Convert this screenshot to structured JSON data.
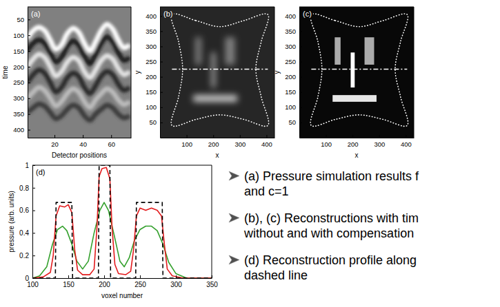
{
  "chart_data": [
    {
      "type": "line",
      "label": "(a)",
      "x_label": "Detector positions",
      "y_label": "time",
      "xlim": [
        1,
        74
      ],
      "ylim": [
        425,
        10
      ],
      "xticks": [
        20,
        40,
        60
      ],
      "yticks": [
        50,
        100,
        150,
        200,
        250,
        300,
        350,
        400
      ],
      "clim": [
        0,
        1
      ],
      "background": 0.5,
      "x": [
        1,
        5,
        9,
        13,
        17,
        21,
        25,
        29,
        33,
        37,
        41,
        45,
        49,
        53,
        57,
        61,
        65,
        69,
        73
      ],
      "series": [
        {
          "color": "#ffffff",
          "values": [
            110,
            85,
            75,
            85,
            115,
            145,
            130,
            95,
            78,
            90,
            125,
            150,
            120,
            85,
            65,
            80,
            115,
            140,
            130
          ]
        },
        {
          "color": "#1a1a1a",
          "values": [
            150,
            125,
            115,
            125,
            155,
            185,
            170,
            135,
            118,
            130,
            165,
            190,
            160,
            125,
            105,
            120,
            155,
            180,
            170
          ]
        },
        {
          "color": "#e6e6e6",
          "values": [
            200,
            175,
            160,
            170,
            200,
            230,
            215,
            185,
            170,
            180,
            215,
            235,
            210,
            180,
            165,
            175,
            205,
            225,
            215
          ]
        },
        {
          "color": "#2b2b2b",
          "values": [
            250,
            225,
            210,
            220,
            250,
            280,
            265,
            235,
            220,
            230,
            265,
            285,
            260,
            230,
            215,
            225,
            255,
            275,
            265
          ]
        },
        {
          "color": "#bdbdbd",
          "values": [
            300,
            280,
            265,
            275,
            300,
            325,
            310,
            285,
            270,
            280,
            310,
            330,
            305,
            285,
            270,
            280,
            305,
            320,
            310
          ]
        },
        {
          "color": "#3a3a3a",
          "values": [
            345,
            330,
            318,
            325,
            345,
            365,
            355,
            335,
            322,
            330,
            355,
            370,
            350,
            335,
            322,
            330,
            350,
            362,
            355
          ]
        }
      ]
    },
    {
      "type": "image",
      "label": "(b)",
      "x_label": "x",
      "y_label": "y",
      "xlim": [
        0,
        430
      ],
      "ylim": [
        0,
        430
      ],
      "xticks": [
        100,
        200,
        300,
        400
      ],
      "yticks": [
        50,
        100,
        150,
        200,
        250,
        300,
        350,
        400
      ],
      "clim": [
        0,
        1
      ],
      "background": 0.15,
      "rects": [
        {
          "x": [
            133,
            155
          ],
          "y": [
            240,
            330
          ],
          "value": 0.5
        },
        {
          "x": [
            193,
            208
          ],
          "y": [
            165,
            280
          ],
          "value": 0.65
        },
        {
          "x": [
            245,
            281
          ],
          "y": [
            240,
            330
          ],
          "value": 0.5
        },
        {
          "x": [
            125,
            290
          ],
          "y": [
            118,
            140
          ],
          "value": 0.8
        }
      ],
      "boundary": {
        "x": [
          45,
          135,
          225,
          315,
          405,
          380,
          360,
          380,
          405,
          315,
          225,
          135,
          45,
          70,
          85,
          70
        ],
        "y": [
          405,
          385,
          365,
          385,
          405,
          315,
          225,
          135,
          40,
          60,
          75,
          60,
          40,
          135,
          225,
          315
        ]
      },
      "profile": {
        "x": [
          45,
          405
        ],
        "y": [
          225,
          225
        ]
      }
    },
    {
      "type": "image",
      "label": "(c)",
      "x_label": "x",
      "y_label": "y",
      "xlim": [
        0,
        430
      ],
      "ylim": [
        0,
        430
      ],
      "xticks": [
        100,
        200,
        300,
        400
      ],
      "yticks": [
        50,
        100,
        150,
        200,
        250,
        300,
        350,
        400
      ],
      "clim": [
        0,
        1
      ],
      "background": 0.03,
      "rects": [
        {
          "x": [
            133,
            155
          ],
          "y": [
            240,
            330
          ],
          "value": 0.67
        },
        {
          "x": [
            193,
            208
          ],
          "y": [
            165,
            280
          ],
          "value": 1
        },
        {
          "x": [
            245,
            281
          ],
          "y": [
            240,
            330
          ],
          "value": 0.67
        },
        {
          "x": [
            125,
            290
          ],
          "y": [
            118,
            140
          ],
          "value": 0.9
        }
      ],
      "boundary": {
        "x": [
          45,
          135,
          225,
          315,
          405,
          380,
          360,
          380,
          405,
          315,
          225,
          135,
          45,
          70,
          85,
          70
        ],
        "y": [
          405,
          385,
          365,
          385,
          405,
          315,
          225,
          135,
          40,
          60,
          75,
          60,
          40,
          135,
          225,
          315
        ]
      },
      "profile": {
        "x": [
          45,
          405
        ],
        "y": [
          225,
          225
        ]
      }
    },
    {
      "type": "line",
      "label": "(d)",
      "x_label": "voxel number",
      "y_label": "pressure (arb. units)",
      "xlim": [
        100,
        350
      ],
      "ylim": [
        0,
        1
      ],
      "xticks": [
        100,
        150,
        200,
        250,
        300,
        350
      ],
      "yticks": [
        0,
        0.2,
        0.4,
        0.6,
        0.8,
        1
      ],
      "series": [
        {
          "color": "#33a02c",
          "x": [
            100,
            110,
            120,
            128,
            135,
            142,
            148,
            155,
            162,
            170,
            178,
            186,
            194,
            200,
            206,
            214,
            222,
            228,
            235,
            242,
            250,
            258,
            266,
            274,
            282,
            290,
            300,
            315,
            350
          ],
          "values": [
            0,
            0.02,
            0.1,
            0.3,
            0.43,
            0.46,
            0.42,
            0.3,
            0.15,
            0.08,
            0.15,
            0.4,
            0.6,
            0.67,
            0.6,
            0.38,
            0.15,
            0.1,
            0.18,
            0.33,
            0.43,
            0.46,
            0.46,
            0.42,
            0.3,
            0.14,
            0.04,
            0,
            0
          ]
        },
        {
          "color": "#e31a1c",
          "x": [
            100,
            115,
            125,
            129,
            133,
            138,
            145,
            150,
            155,
            159,
            163,
            170,
            180,
            186,
            190,
            193,
            197,
            203,
            208,
            211,
            215,
            220,
            230,
            237,
            241,
            245,
            250,
            258,
            266,
            274,
            280,
            284,
            288,
            295,
            310,
            350
          ],
          "values": [
            0,
            0.01,
            0.05,
            0.2,
            0.55,
            0.64,
            0.63,
            0.65,
            0.58,
            0.25,
            0.07,
            0.03,
            0.03,
            0.08,
            0.45,
            0.9,
            0.97,
            0.98,
            0.88,
            0.45,
            0.12,
            0.04,
            0.03,
            0.06,
            0.25,
            0.55,
            0.62,
            0.6,
            0.62,
            0.6,
            0.55,
            0.3,
            0.08,
            0.02,
            0,
            0
          ]
        },
        {
          "color": "#000000",
          "line_style": "dashed",
          "x": [
            100,
            132,
            133,
            155,
            156,
            192,
            193,
            208,
            209,
            244,
            245,
            281,
            282,
            350
          ],
          "values": [
            0,
            0,
            0.67,
            0.67,
            0,
            0,
            1,
            1,
            0,
            0,
            0.67,
            0.67,
            0,
            0
          ]
        }
      ]
    }
  ],
  "bullets": [
    [
      "(a) Pressure simulation results f",
      "and c=1"
    ],
    [
      "(b), (c) Reconstructions with tim",
      "without and with compensation"
    ],
    [
      "(d) Reconstruction profile along",
      "dashed line"
    ]
  ]
}
